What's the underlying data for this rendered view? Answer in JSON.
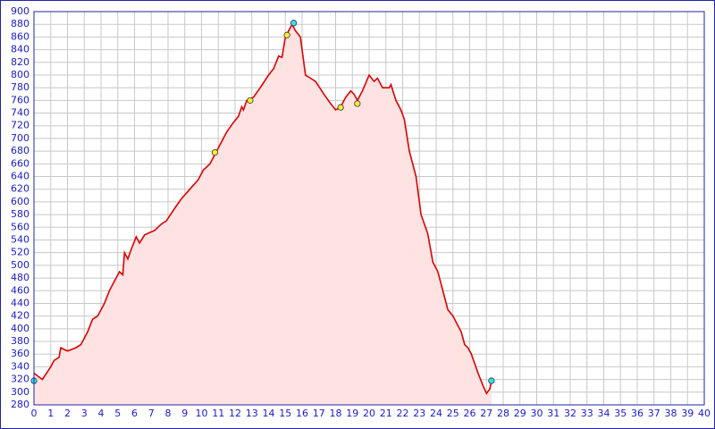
{
  "chart_data": {
    "type": "area",
    "x": [
      0,
      0.5,
      1,
      1.2,
      1.5,
      1.6,
      2,
      2.5,
      2.8,
      3.2,
      3.5,
      3.8,
      4.2,
      4.5,
      4.9,
      5.1,
      5.3,
      5.4,
      5.6,
      5.8,
      6.1,
      6.3,
      6.6,
      7.2,
      7.6,
      7.9,
      8.4,
      8.8,
      9.3,
      9.8,
      10.1,
      10.5,
      10.8,
      11.1,
      11.5,
      11.9,
      12.2,
      12.4,
      12.5,
      12.7,
      13.1,
      13.5,
      14.0,
      14.3,
      14.6,
      14.8,
      15.0,
      15.4,
      15.6,
      15.9,
      16.2,
      16.5,
      16.8,
      17.3,
      17.7,
      18.0,
      18.3,
      18.6,
      18.9,
      19.1,
      19.3,
      19.6,
      20.0,
      20.3,
      20.5,
      20.8,
      21.2,
      21.3,
      21.6,
      21.9,
      22.1,
      22.4,
      22.8,
      23.1,
      23.5,
      23.8,
      24.1,
      24.4,
      24.7,
      25.0,
      25.2,
      25.5,
      25.7,
      25.9,
      26.1,
      26.5,
      26.8,
      27.0,
      27.2,
      27.3
    ],
    "values": [
      330,
      320,
      340,
      350,
      355,
      370,
      365,
      370,
      375,
      395,
      415,
      420,
      440,
      460,
      480,
      490,
      485,
      520,
      510,
      525,
      545,
      535,
      548,
      555,
      565,
      570,
      590,
      605,
      620,
      635,
      650,
      660,
      675,
      690,
      710,
      725,
      735,
      750,
      745,
      760,
      765,
      780,
      800,
      810,
      830,
      828,
      860,
      880,
      870,
      860,
      800,
      795,
      790,
      770,
      755,
      745,
      750,
      765,
      775,
      770,
      760,
      775,
      800,
      790,
      795,
      780,
      780,
      785,
      760,
      745,
      730,
      680,
      640,
      580,
      550,
      505,
      490,
      460,
      430,
      420,
      410,
      395,
      375,
      370,
      360,
      330,
      310,
      298,
      305,
      318
    ],
    "color": "#dd0000",
    "fill": "#ffe3e3",
    "markers": [
      {
        "color": "#33ddff",
        "x": [
          0,
          15.5,
          27.3
        ],
        "values": [
          318,
          882,
          318
        ]
      },
      {
        "color": "#ffee33",
        "x": [
          10.8,
          12.9,
          15.1,
          18.3,
          19.3
        ],
        "values": [
          678,
          760,
          863,
          749,
          755
        ]
      }
    ],
    "xlim": [
      0,
      40
    ],
    "xticks": [
      0,
      1,
      2,
      3,
      4,
      5,
      6,
      7,
      8,
      9,
      10,
      11,
      12,
      13,
      14,
      15,
      16,
      17,
      18,
      19,
      20,
      21,
      22,
      23,
      24,
      25,
      26,
      27,
      28,
      29,
      30,
      31,
      32,
      33,
      34,
      35,
      36,
      37,
      38,
      39,
      40
    ],
    "ylim": [
      280,
      900
    ],
    "yticks": [
      280,
      300,
      320,
      340,
      360,
      380,
      400,
      420,
      440,
      460,
      480,
      500,
      520,
      540,
      560,
      580,
      600,
      620,
      640,
      660,
      680,
      700,
      720,
      740,
      760,
      780,
      800,
      820,
      840,
      860,
      880,
      900
    ],
    "grid": true
  }
}
